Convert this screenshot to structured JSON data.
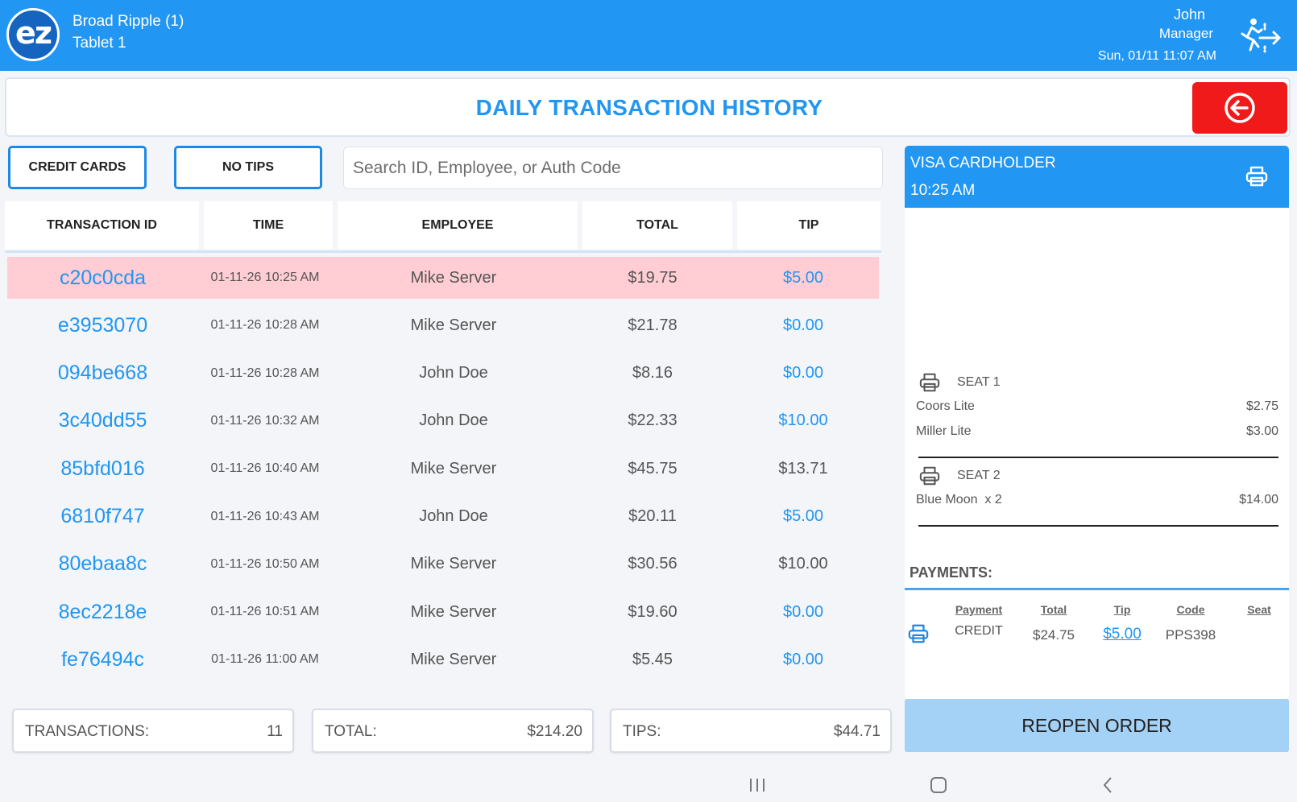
{
  "header": {
    "logo_text": "ez",
    "location_name": "Broad Ripple (1)",
    "device_name": "Tablet 1",
    "user_name": "John",
    "user_role": "Manager",
    "datetime": "Sun, 01/11 11:07 AM",
    "logout_icon": "logout-runner-icon"
  },
  "page": {
    "title": "DAILY TRANSACTION HISTORY",
    "back_icon": "arrow-left-circle-icon",
    "back_color": "#f11a1a"
  },
  "filters": {
    "credit_cards_label": "CREDIT CARDS",
    "no_tips_label": "NO TIPS",
    "search_placeholder": "Search ID, Employee, or Auth Code",
    "search_value": ""
  },
  "table": {
    "columns": [
      "TRANSACTION ID",
      "TIME",
      "EMPLOYEE",
      "TOTAL",
      "TIP"
    ],
    "rows": [
      {
        "id": "c20c0cda",
        "time": "01-11-26 10:25 AM",
        "employee": "Mike Server",
        "total": "$19.75",
        "tip": "$5.00",
        "tip_highlight": true,
        "selected": true
      },
      {
        "id": "e3953070",
        "time": "01-11-26 10:28 AM",
        "employee": "Mike Server",
        "total": "$21.78",
        "tip": "$0.00",
        "tip_highlight": true,
        "selected": false
      },
      {
        "id": "094be668",
        "time": "01-11-26 10:28 AM",
        "employee": "John Doe",
        "total": "$8.16",
        "tip": "$0.00",
        "tip_highlight": true,
        "selected": false
      },
      {
        "id": "3c40dd55",
        "time": "01-11-26 10:32 AM",
        "employee": "John Doe",
        "total": "$22.33",
        "tip": "$10.00",
        "tip_highlight": true,
        "selected": false
      },
      {
        "id": "85bfd016",
        "time": "01-11-26 10:40 AM",
        "employee": "Mike Server",
        "total": "$45.75",
        "tip": "$13.71",
        "tip_highlight": false,
        "selected": false
      },
      {
        "id": "6810f747",
        "time": "01-11-26 10:43 AM",
        "employee": "John Doe",
        "total": "$20.11",
        "tip": "$5.00",
        "tip_highlight": true,
        "selected": false
      },
      {
        "id": "80ebaa8c",
        "time": "01-11-26 10:50 AM",
        "employee": "Mike Server",
        "total": "$30.56",
        "tip": "$10.00",
        "tip_highlight": false,
        "selected": false
      },
      {
        "id": "8ec2218e",
        "time": "01-11-26 10:51 AM",
        "employee": "Mike Server",
        "total": "$19.60",
        "tip": "$0.00",
        "tip_highlight": true,
        "selected": false
      },
      {
        "id": "fe76494c",
        "time": "01-11-26 11:00 AM",
        "employee": "Mike Server",
        "total": "$5.45",
        "tip": "$0.00",
        "tip_highlight": true,
        "selected": false
      }
    ]
  },
  "summary": {
    "transactions_label": "TRANSACTIONS:",
    "transactions_value": "11",
    "total_label": "TOTAL:",
    "total_value": "$214.20",
    "tips_label": "TIPS:",
    "tips_value": "$44.71"
  },
  "detail": {
    "cardholder": "VISA CARDHOLDER",
    "time": "10:25 AM",
    "seats": [
      {
        "label": "SEAT 1",
        "items": [
          {
            "name": "Coors Lite",
            "price": "$2.75"
          },
          {
            "name": "Miller Lite",
            "price": "$3.00"
          }
        ]
      },
      {
        "label": "SEAT 2",
        "items": [
          {
            "name": "Blue Moon  x 2",
            "price": "$14.00"
          }
        ]
      }
    ],
    "payments_title": "PAYMENTS:",
    "payment_columns": [
      "Payment",
      "Total",
      "Tip",
      "Code",
      "Seat"
    ],
    "payment": {
      "type": "CREDIT",
      "total": "$24.75",
      "tip": "$5.00",
      "code": "PPS398",
      "seat": ""
    }
  },
  "reopen_label": "REOPEN ORDER",
  "colors": {
    "accent": "#2196f3",
    "selected_row": "#ffcdd3",
    "reopen": "#a4d1f6"
  }
}
